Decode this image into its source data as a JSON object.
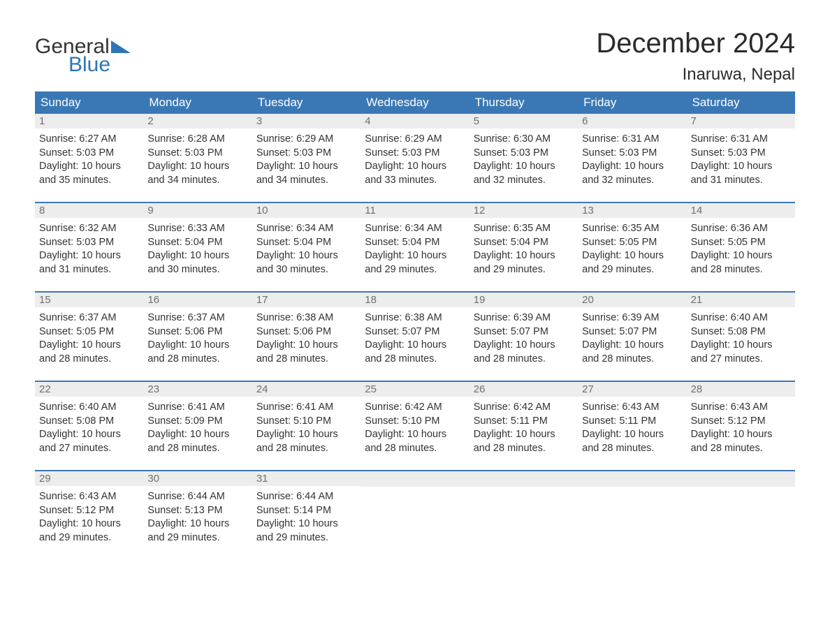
{
  "logo": {
    "word1": "General",
    "word2": "Blue"
  },
  "header": {
    "month_title": "December 2024",
    "location": "Inaruwa, Nepal"
  },
  "colors": {
    "header_bg": "#3a78b5",
    "header_text": "#ffffff",
    "daynum_bg": "#ededed",
    "daynum_text": "#6f6f6f",
    "body_text": "#333333",
    "rule": "#3a78b5",
    "logo_accent": "#2f75b5"
  },
  "weekdays": [
    "Sunday",
    "Monday",
    "Tuesday",
    "Wednesday",
    "Thursday",
    "Friday",
    "Saturday"
  ],
  "weeks": [
    [
      {
        "n": "1",
        "sr": "Sunrise: 6:27 AM",
        "ss": "Sunset: 5:03 PM",
        "d1": "Daylight: 10 hours",
        "d2": "and 35 minutes."
      },
      {
        "n": "2",
        "sr": "Sunrise: 6:28 AM",
        "ss": "Sunset: 5:03 PM",
        "d1": "Daylight: 10 hours",
        "d2": "and 34 minutes."
      },
      {
        "n": "3",
        "sr": "Sunrise: 6:29 AM",
        "ss": "Sunset: 5:03 PM",
        "d1": "Daylight: 10 hours",
        "d2": "and 34 minutes."
      },
      {
        "n": "4",
        "sr": "Sunrise: 6:29 AM",
        "ss": "Sunset: 5:03 PM",
        "d1": "Daylight: 10 hours",
        "d2": "and 33 minutes."
      },
      {
        "n": "5",
        "sr": "Sunrise: 6:30 AM",
        "ss": "Sunset: 5:03 PM",
        "d1": "Daylight: 10 hours",
        "d2": "and 32 minutes."
      },
      {
        "n": "6",
        "sr": "Sunrise: 6:31 AM",
        "ss": "Sunset: 5:03 PM",
        "d1": "Daylight: 10 hours",
        "d2": "and 32 minutes."
      },
      {
        "n": "7",
        "sr": "Sunrise: 6:31 AM",
        "ss": "Sunset: 5:03 PM",
        "d1": "Daylight: 10 hours",
        "d2": "and 31 minutes."
      }
    ],
    [
      {
        "n": "8",
        "sr": "Sunrise: 6:32 AM",
        "ss": "Sunset: 5:03 PM",
        "d1": "Daylight: 10 hours",
        "d2": "and 31 minutes."
      },
      {
        "n": "9",
        "sr": "Sunrise: 6:33 AM",
        "ss": "Sunset: 5:04 PM",
        "d1": "Daylight: 10 hours",
        "d2": "and 30 minutes."
      },
      {
        "n": "10",
        "sr": "Sunrise: 6:34 AM",
        "ss": "Sunset: 5:04 PM",
        "d1": "Daylight: 10 hours",
        "d2": "and 30 minutes."
      },
      {
        "n": "11",
        "sr": "Sunrise: 6:34 AM",
        "ss": "Sunset: 5:04 PM",
        "d1": "Daylight: 10 hours",
        "d2": "and 29 minutes."
      },
      {
        "n": "12",
        "sr": "Sunrise: 6:35 AM",
        "ss": "Sunset: 5:04 PM",
        "d1": "Daylight: 10 hours",
        "d2": "and 29 minutes."
      },
      {
        "n": "13",
        "sr": "Sunrise: 6:35 AM",
        "ss": "Sunset: 5:05 PM",
        "d1": "Daylight: 10 hours",
        "d2": "and 29 minutes."
      },
      {
        "n": "14",
        "sr": "Sunrise: 6:36 AM",
        "ss": "Sunset: 5:05 PM",
        "d1": "Daylight: 10 hours",
        "d2": "and 28 minutes."
      }
    ],
    [
      {
        "n": "15",
        "sr": "Sunrise: 6:37 AM",
        "ss": "Sunset: 5:05 PM",
        "d1": "Daylight: 10 hours",
        "d2": "and 28 minutes."
      },
      {
        "n": "16",
        "sr": "Sunrise: 6:37 AM",
        "ss": "Sunset: 5:06 PM",
        "d1": "Daylight: 10 hours",
        "d2": "and 28 minutes."
      },
      {
        "n": "17",
        "sr": "Sunrise: 6:38 AM",
        "ss": "Sunset: 5:06 PM",
        "d1": "Daylight: 10 hours",
        "d2": "and 28 minutes."
      },
      {
        "n": "18",
        "sr": "Sunrise: 6:38 AM",
        "ss": "Sunset: 5:07 PM",
        "d1": "Daylight: 10 hours",
        "d2": "and 28 minutes."
      },
      {
        "n": "19",
        "sr": "Sunrise: 6:39 AM",
        "ss": "Sunset: 5:07 PM",
        "d1": "Daylight: 10 hours",
        "d2": "and 28 minutes."
      },
      {
        "n": "20",
        "sr": "Sunrise: 6:39 AM",
        "ss": "Sunset: 5:07 PM",
        "d1": "Daylight: 10 hours",
        "d2": "and 28 minutes."
      },
      {
        "n": "21",
        "sr": "Sunrise: 6:40 AM",
        "ss": "Sunset: 5:08 PM",
        "d1": "Daylight: 10 hours",
        "d2": "and 27 minutes."
      }
    ],
    [
      {
        "n": "22",
        "sr": "Sunrise: 6:40 AM",
        "ss": "Sunset: 5:08 PM",
        "d1": "Daylight: 10 hours",
        "d2": "and 27 minutes."
      },
      {
        "n": "23",
        "sr": "Sunrise: 6:41 AM",
        "ss": "Sunset: 5:09 PM",
        "d1": "Daylight: 10 hours",
        "d2": "and 28 minutes."
      },
      {
        "n": "24",
        "sr": "Sunrise: 6:41 AM",
        "ss": "Sunset: 5:10 PM",
        "d1": "Daylight: 10 hours",
        "d2": "and 28 minutes."
      },
      {
        "n": "25",
        "sr": "Sunrise: 6:42 AM",
        "ss": "Sunset: 5:10 PM",
        "d1": "Daylight: 10 hours",
        "d2": "and 28 minutes."
      },
      {
        "n": "26",
        "sr": "Sunrise: 6:42 AM",
        "ss": "Sunset: 5:11 PM",
        "d1": "Daylight: 10 hours",
        "d2": "and 28 minutes."
      },
      {
        "n": "27",
        "sr": "Sunrise: 6:43 AM",
        "ss": "Sunset: 5:11 PM",
        "d1": "Daylight: 10 hours",
        "d2": "and 28 minutes."
      },
      {
        "n": "28",
        "sr": "Sunrise: 6:43 AM",
        "ss": "Sunset: 5:12 PM",
        "d1": "Daylight: 10 hours",
        "d2": "and 28 minutes."
      }
    ],
    [
      {
        "n": "29",
        "sr": "Sunrise: 6:43 AM",
        "ss": "Sunset: 5:12 PM",
        "d1": "Daylight: 10 hours",
        "d2": "and 29 minutes."
      },
      {
        "n": "30",
        "sr": "Sunrise: 6:44 AM",
        "ss": "Sunset: 5:13 PM",
        "d1": "Daylight: 10 hours",
        "d2": "and 29 minutes."
      },
      {
        "n": "31",
        "sr": "Sunrise: 6:44 AM",
        "ss": "Sunset: 5:14 PM",
        "d1": "Daylight: 10 hours",
        "d2": "and 29 minutes."
      },
      null,
      null,
      null,
      null
    ]
  ]
}
